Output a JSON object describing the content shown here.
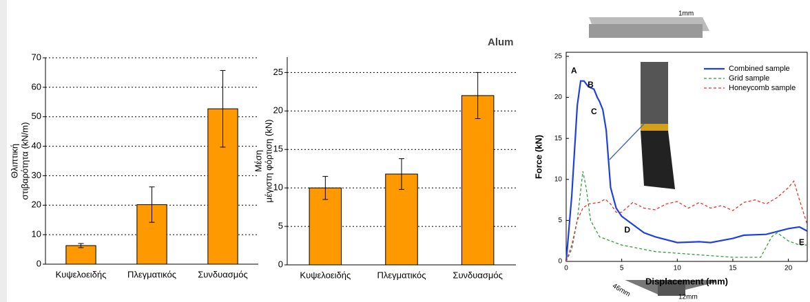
{
  "slide_text": [
    "Alum",
    "1mm",
    "46mm",
    "12mm"
  ],
  "chart_data": [
    {
      "type": "bar",
      "ylabel": [
        "Θλιπτική",
        "στιβαρότητα (kN/m)"
      ],
      "categories": [
        "Κυψελοειδής",
        "Πλεγματικός",
        "Συνδυασμός"
      ],
      "values": [
        6.3,
        20.2,
        52.7
      ],
      "errors": [
        0.7,
        6,
        13
      ],
      "color": "#ff9900",
      "ylim": [
        0,
        70
      ],
      "yticks": [
        0,
        10,
        20,
        30,
        40,
        50,
        60,
        70
      ],
      "grid": true
    },
    {
      "type": "bar",
      "ylabel": [
        "Μέση",
        "μέγιστη φόρτιση (kN)"
      ],
      "categories": [
        "Κυψελοειδής",
        "Πλεγματικός",
        "Συνδυασμός"
      ],
      "values": [
        10,
        11.8,
        22
      ],
      "errors": [
        1.5,
        2,
        3
      ],
      "color": "#ff9900",
      "ylim": [
        0,
        27
      ],
      "yticks": [
        0,
        5,
        10,
        15,
        20,
        25
      ],
      "grid": true
    },
    {
      "type": "line",
      "xlabel": "Displacement (mm)",
      "ylabel": "Force (kN)",
      "xlim": [
        0,
        21.7
      ],
      "xticks": [
        0,
        5,
        10,
        15,
        20
      ],
      "ylim": [
        0,
        25.5
      ],
      "yticks": [
        0,
        5,
        10,
        15,
        20,
        25
      ],
      "grid": false,
      "legend": "top-right",
      "annotations": [
        "A",
        "B",
        "C",
        "D",
        "E"
      ],
      "series": [
        {
          "name": "Combined sample",
          "color": "#1f3fe0",
          "dash": false,
          "x": [
            0,
            0.5,
            1,
            1.3,
            1.6,
            2,
            2.5,
            2.8,
            3,
            3.3,
            3.6,
            4,
            4.5,
            5,
            6,
            7,
            8,
            10,
            12,
            13,
            15,
            16,
            18,
            20,
            21,
            21.7
          ],
          "values": [
            0,
            8,
            19,
            22,
            22,
            21.3,
            21,
            20,
            19.5,
            18.5,
            16,
            9,
            6.5,
            5.5,
            4.5,
            3.5,
            3,
            2.3,
            2.4,
            2.3,
            2.8,
            3.2,
            3.3,
            4,
            4.2,
            3.7
          ]
        },
        {
          "name": "Grid sample",
          "color": "#2e9e3a",
          "dash": true,
          "x": [
            0,
            0.5,
            1,
            1.5,
            1.8,
            2.2,
            3,
            5,
            8,
            12,
            15,
            17.5,
            18.5,
            19,
            20,
            21,
            21.7
          ],
          "values": [
            0,
            1.5,
            5,
            11,
            9,
            5,
            3,
            2,
            1.2,
            0.8,
            0.5,
            0.5,
            3,
            3.5,
            2.5,
            2,
            2
          ]
        },
        {
          "name": "Honeycomb sample",
          "color": "#e8322a",
          "dash": true,
          "x": [
            0,
            0.5,
            1,
            1.5,
            2,
            3,
            3.5,
            4,
            4.5,
            5,
            6,
            7,
            8,
            9,
            10,
            11,
            12,
            13,
            14,
            15,
            16,
            17,
            18,
            19,
            20,
            20.5,
            21,
            21.7
          ],
          "values": [
            0,
            2,
            5,
            6.5,
            7,
            7.2,
            7.6,
            7,
            6,
            6,
            7.2,
            6.5,
            6.3,
            7,
            7.3,
            6.5,
            7.2,
            6.5,
            6.8,
            6.2,
            7.2,
            7.5,
            7,
            7.8,
            9,
            9.8,
            7.5,
            4.5
          ]
        }
      ]
    }
  ]
}
